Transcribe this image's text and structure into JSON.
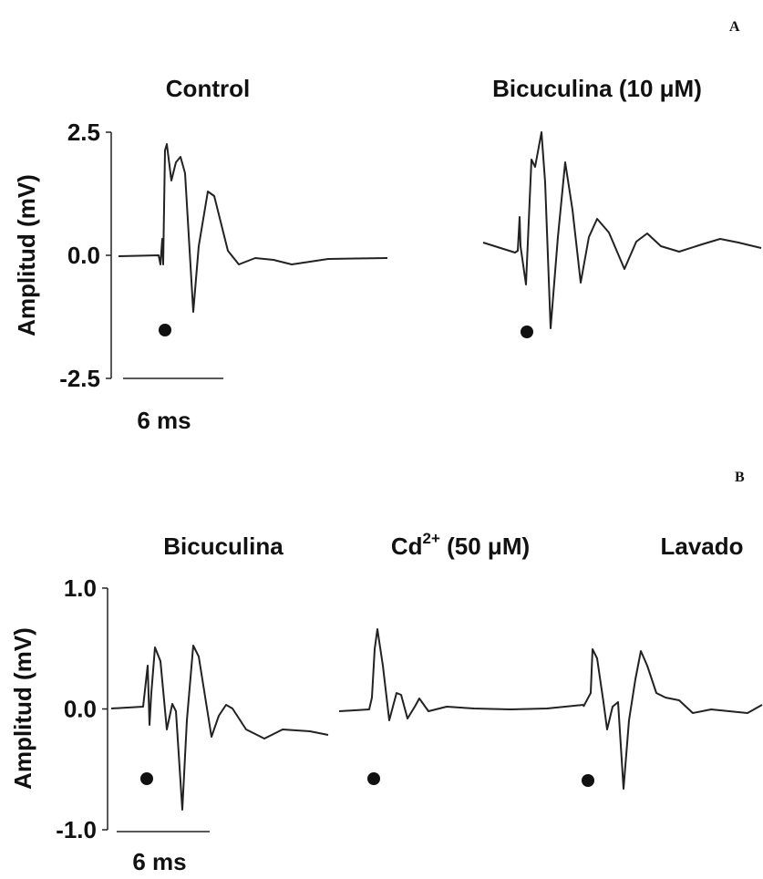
{
  "panels": [
    {
      "label": "A",
      "axis_label": "Amplitud (mV)",
      "ylim": [
        -2.5,
        2.5
      ],
      "yticks": [
        {
          "value": 2.5,
          "label": "2.5"
        },
        {
          "value": 0,
          "label": "0.0"
        },
        {
          "value": -2.5,
          "label": "-2.5"
        }
      ],
      "scale_bar": "6 ms",
      "titles": [
        "Control",
        "Bicuculina (10 μM)"
      ]
    },
    {
      "label": "B",
      "axis_label": "Amplitud (mV)",
      "ylim": [
        -1.0,
        1.0
      ],
      "yticks": [
        {
          "value": 1.0,
          "label": "1.0"
        },
        {
          "value": 0,
          "label": "0.0"
        },
        {
          "value": -1.0,
          "label": "-1.0"
        }
      ],
      "scale_bar": "6 ms",
      "titles": [
        "Bicuculina",
        {
          "base": "Cd",
          "sup": "2+",
          "rest": " (50 μM)"
        },
        "Lavado"
      ]
    }
  ]
}
